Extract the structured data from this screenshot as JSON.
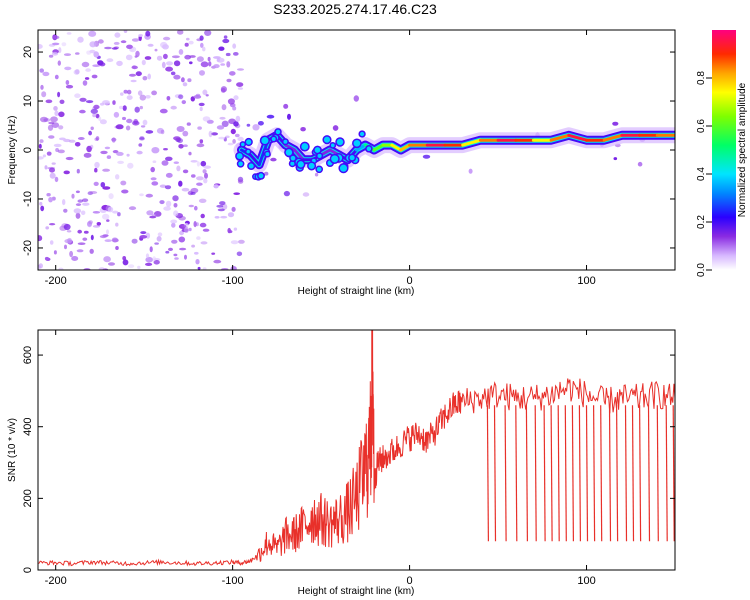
{
  "title": "S233.2025.274.17.46.C23",
  "chart_data": [
    {
      "type": "heatmap",
      "name": "spectrogram",
      "xlabel": "Height of straight line (km)",
      "ylabel": "Frequency (Hz)",
      "xlim": [
        -210,
        150
      ],
      "ylim": [
        -24.5,
        24.5
      ],
      "xticks": [
        -200,
        -100,
        0,
        100
      ],
      "yticks": [
        -20,
        -10,
        0,
        10,
        20
      ],
      "colorbar": {
        "label": "Normalized spectral amplitude",
        "range": [
          0,
          1
        ],
        "ticks": [
          0.0,
          0.2,
          0.4,
          0.6,
          0.8
        ],
        "tick_labels": [
          "0.0",
          "0.2",
          "0.4",
          "0.6",
          "0.8"
        ]
      },
      "signal_trace": {
        "x": [
          -95,
          -90,
          -85,
          -80,
          -75,
          -70,
          -65,
          -60,
          -55,
          -50,
          -45,
          -40,
          -35,
          -30,
          -25,
          -20,
          -15,
          -10,
          -5,
          0,
          10,
          20,
          30,
          40,
          50,
          60,
          70,
          80,
          90,
          100,
          110,
          120,
          130,
          140,
          150
        ],
        "freq": [
          0,
          -1,
          -3,
          2,
          3,
          1,
          0,
          -2,
          -2,
          -1,
          0,
          -1,
          -2,
          0,
          1,
          0,
          1,
          1,
          0,
          1,
          1,
          1,
          1,
          2,
          2,
          2,
          2,
          2,
          3,
          2,
          2,
          3,
          3,
          3,
          3
        ],
        "amplitude": [
          0.25,
          0.2,
          0.25,
          0.2,
          0.2,
          0.15,
          0.15,
          0.2,
          0.2,
          0.15,
          0.15,
          0.2,
          0.2,
          0.35,
          0.5,
          0.6,
          0.65,
          0.75,
          0.8,
          0.85,
          0.95,
          0.9,
          0.75,
          0.85,
          0.95,
          0.9,
          0.75,
          0.85,
          0.95,
          0.9,
          0.85,
          0.95,
          0.9,
          0.85,
          0.8
        ]
      }
    },
    {
      "type": "line",
      "name": "snr",
      "xlabel": "Height of straight line (km)",
      "ylabel": "SNR (10 * v/v)",
      "xlim": [
        -210,
        150
      ],
      "ylim": [
        0,
        670
      ],
      "xticks": [
        -200,
        -100,
        0,
        100
      ],
      "yticks": [
        0,
        200,
        400,
        600
      ],
      "series": [
        {
          "name": "SNR",
          "color": "#e8302a",
          "x": [
            -210,
            -200,
            -190,
            -180,
            -170,
            -160,
            -150,
            -140,
            -130,
            -120,
            -110,
            -100,
            -95,
            -90,
            -85,
            -80,
            -75,
            -70,
            -65,
            -60,
            -55,
            -50,
            -45,
            -40,
            -35,
            -30,
            -25,
            -22,
            -21,
            -20,
            -18,
            -15,
            -10,
            -5,
            0,
            5,
            10,
            15,
            20,
            25,
            30,
            40,
            50,
            60,
            70,
            80,
            90,
            100,
            110,
            120,
            130,
            140,
            150
          ],
          "y": [
            20,
            20,
            18,
            22,
            20,
            18,
            20,
            22,
            20,
            18,
            20,
            22,
            20,
            25,
            45,
            80,
            60,
            95,
            100,
            120,
            150,
            140,
            130,
            140,
            160,
            200,
            280,
            350,
            670,
            240,
            300,
            310,
            330,
            350,
            370,
            380,
            360,
            390,
            430,
            460,
            470,
            480,
            490,
            480,
            480,
            490,
            510,
            490,
            470,
            480,
            480,
            490,
            480
          ],
          "dropouts_x": [
            44,
            48,
            54,
            60,
            66,
            71,
            76,
            80,
            84,
            88,
            92,
            96,
            100,
            104,
            108,
            113,
            117,
            122,
            126,
            130,
            135,
            140,
            145,
            149
          ],
          "dropout_low": 80
        }
      ]
    }
  ]
}
